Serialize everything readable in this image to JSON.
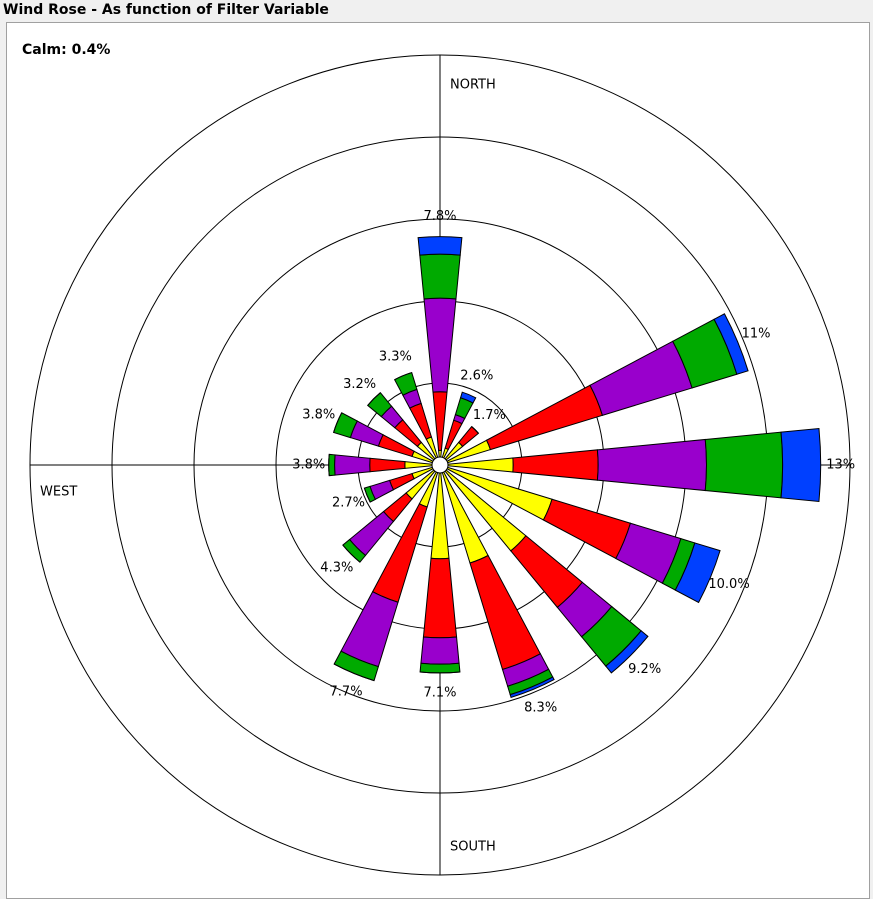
{
  "chart_data": {
    "type": "windrose",
    "title": "Wind Rose - As function of Filter Variable",
    "calm_label": "Calm: 0.4%",
    "compass_labels": [
      "NORTH",
      "SOUTH",
      "WEST"
    ],
    "rlim": [
      0,
      14
    ],
    "rticks": [
      2.8,
      5.6,
      8.4,
      11.2,
      14
    ],
    "series": [
      {
        "color": "#ffff00",
        "values": [
          0.5,
          0.6,
          1.0,
          1.8,
          2.5,
          4.0,
          3.8,
          3.5,
          3.2,
          1.5,
          1.5,
          1.0,
          1.2,
          1.0,
          1.0,
          1.0
        ]
      },
      {
        "color": "#ff0000",
        "values": [
          2.0,
          1.0,
          0.7,
          4.0,
          2.9,
          2.8,
          2.5,
          3.8,
          2.7,
          3.4,
          1.0,
          0.8,
          1.2,
          1.2,
          1.0,
          1.2
        ]
      },
      {
        "color": "#9900cc",
        "values": [
          3.2,
          0.2,
          0,
          3.2,
          3.7,
          1.8,
          1.3,
          0.6,
          0.9,
          2.3,
          1.5,
          0.7,
          1.2,
          1.0,
          0.6,
          0.5
        ]
      },
      {
        "color": "#00aa00",
        "values": [
          1.5,
          0.6,
          0,
          1.6,
          2.6,
          0.5,
          1.3,
          0.3,
          0.3,
          0.5,
          0.3,
          0.2,
          0.2,
          0.6,
          0.6,
          0.6
        ]
      },
      {
        "color": "#0040ff",
        "values": [
          0.6,
          0.2,
          0,
          0.4,
          1.3,
          0.9,
          0.3,
          0.1,
          0,
          0,
          0,
          0,
          0,
          0,
          0,
          0
        ]
      }
    ],
    "totals": [
      7.8,
      2.6,
      1.7,
      11,
      13,
      10.0,
      9.2,
      8.3,
      7.1,
      7.7,
      4.3,
      2.7,
      3.8,
      3.8,
      3.2,
      3.3
    ],
    "value_labels": [
      "7.8%",
      "2.6%",
      "1.7%",
      "11%",
      "13%",
      "10.0%",
      "9.2%",
      "8.3%",
      "7.1%",
      "7.7%",
      "4.3%",
      "2.7%",
      "3.8%",
      "3.8%",
      "3.2%",
      "3.3%"
    ]
  }
}
